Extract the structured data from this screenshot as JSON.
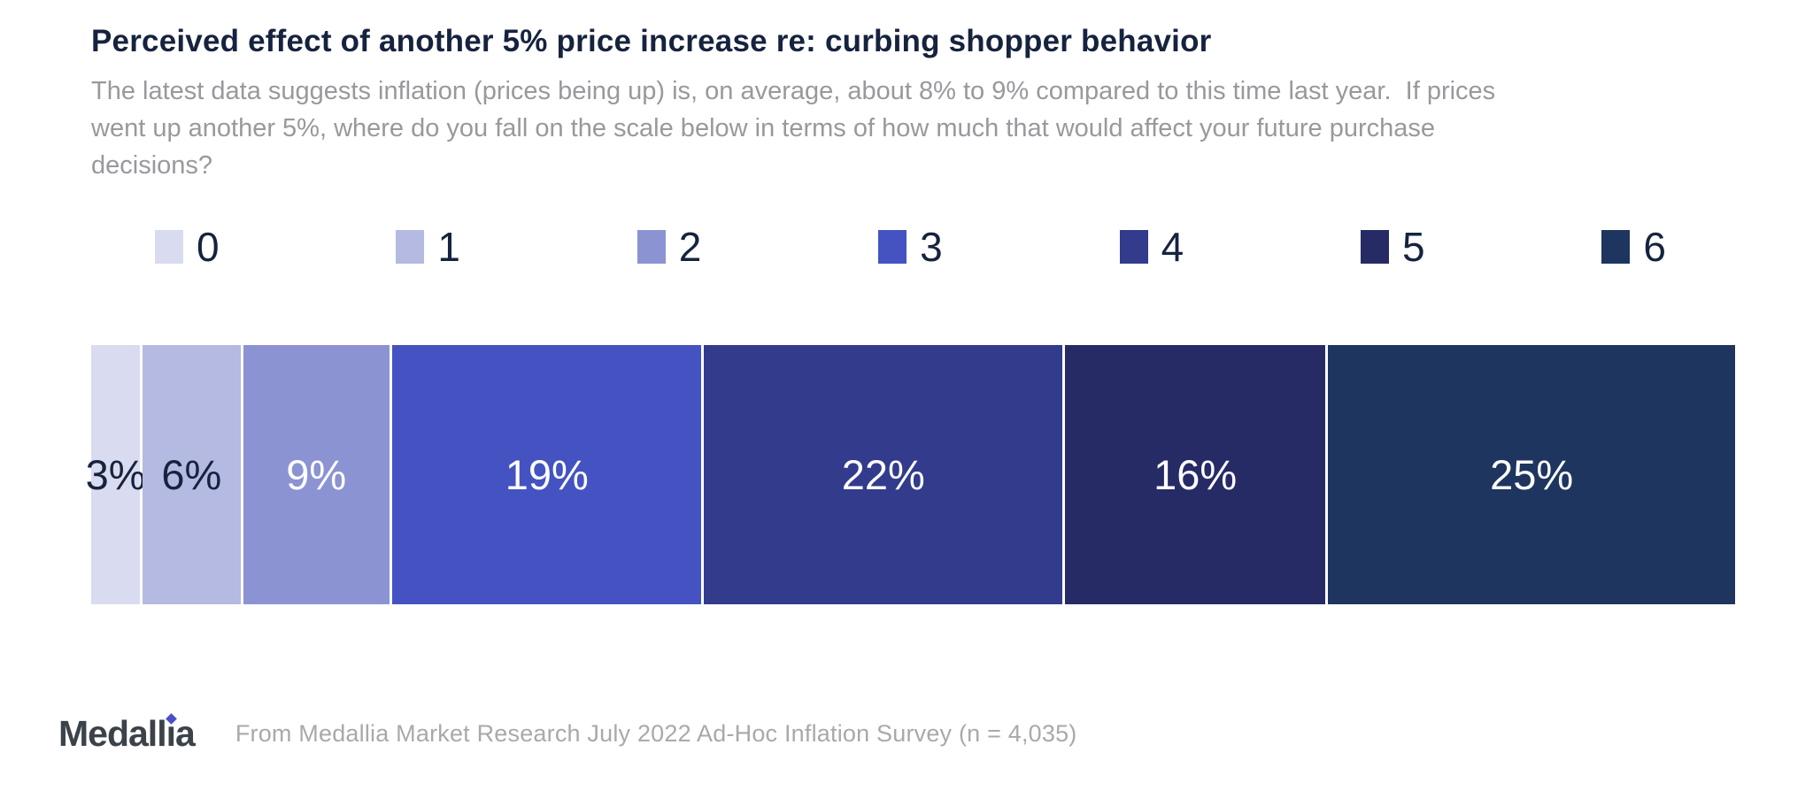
{
  "header": {
    "title": "Perceived effect of another 5% price increase re: curbing shopper behavior",
    "subtitle": "The latest data suggests inflation (prices being up) is, on average, about 8% to 9% compared to this time last year.  If prices\nwent up another 5%, where do you fall on the scale below in terms of how much that would affect your future purchase\ndecisions?"
  },
  "chart_data": {
    "type": "bar",
    "variant": "horizontal-stacked-100",
    "title": "Perceived effect of another 5% price increase re: curbing shopper behavior",
    "categories": [
      "0",
      "1",
      "2",
      "3",
      "4",
      "5",
      "6"
    ],
    "values": [
      3,
      6,
      9,
      19,
      22,
      16,
      25
    ],
    "unit": "%",
    "data_labels": [
      "3%",
      "6%",
      "9%",
      "19%",
      "22%",
      "16%",
      "25%"
    ],
    "colors": [
      "#d9dcf0",
      "#b5bae2",
      "#8b93d3",
      "#4453c1",
      "#333b8c",
      "#262b66",
      "#1d355f"
    ],
    "label_colors": [
      "#16233f",
      "#16233f",
      "#ffffff",
      "#ffffff",
      "#ffffff",
      "#ffffff",
      "#ffffff"
    ],
    "legend_position": "top",
    "grid": false,
    "axis_labels": {
      "x": "",
      "y": ""
    }
  },
  "footer": {
    "logo": {
      "part1": "Medall",
      "i_char": "ı",
      "part2": "a"
    },
    "source": "From Medallia Market Research July 2022 Ad-Hoc Inflation Survey (n = 4,035)"
  },
  "colors": {
    "title_text": "#16233f",
    "subtitle_text": "#98999d",
    "logo_text": "#3b4249",
    "logo_diamond": "#4a50c8",
    "source_text": "#a9a9ad",
    "background": "#ffffff"
  }
}
